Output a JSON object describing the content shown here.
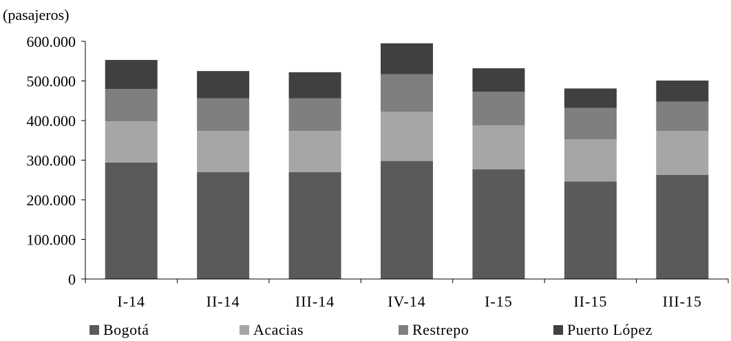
{
  "chart_data": {
    "type": "bar",
    "stacked": true,
    "unit_label": "(pasajeros)",
    "categories": [
      "I-14",
      "II-14",
      "III-14",
      "IV-14",
      "I-15",
      "II-15",
      "III-15"
    ],
    "series": [
      {
        "name": "Bogotá",
        "color": "#5a5a5a",
        "values": [
          294000,
          270000,
          270000,
          298000,
          277000,
          246000,
          263000
        ]
      },
      {
        "name": "Acacias",
        "color": "#a6a6a6",
        "values": [
          104000,
          104000,
          104000,
          124000,
          111000,
          107000,
          111000
        ]
      },
      {
        "name": "Restrepo",
        "color": "#7f7f7f",
        "values": [
          82000,
          82000,
          82000,
          95000,
          85000,
          79000,
          74000
        ]
      },
      {
        "name": "Puerto López",
        "color": "#404040",
        "values": [
          73000,
          69000,
          66000,
          78000,
          59000,
          49000,
          53000
        ]
      }
    ],
    "ylim": [
      0,
      600000
    ],
    "yticks": [
      "0",
      "100.000",
      "200.000",
      "300.000",
      "400.000",
      "500.000",
      "600.000"
    ],
    "ytick_values": [
      0,
      100000,
      200000,
      300000,
      400000,
      500000,
      600000
    ],
    "grid": false,
    "legend_position": "bottom"
  }
}
